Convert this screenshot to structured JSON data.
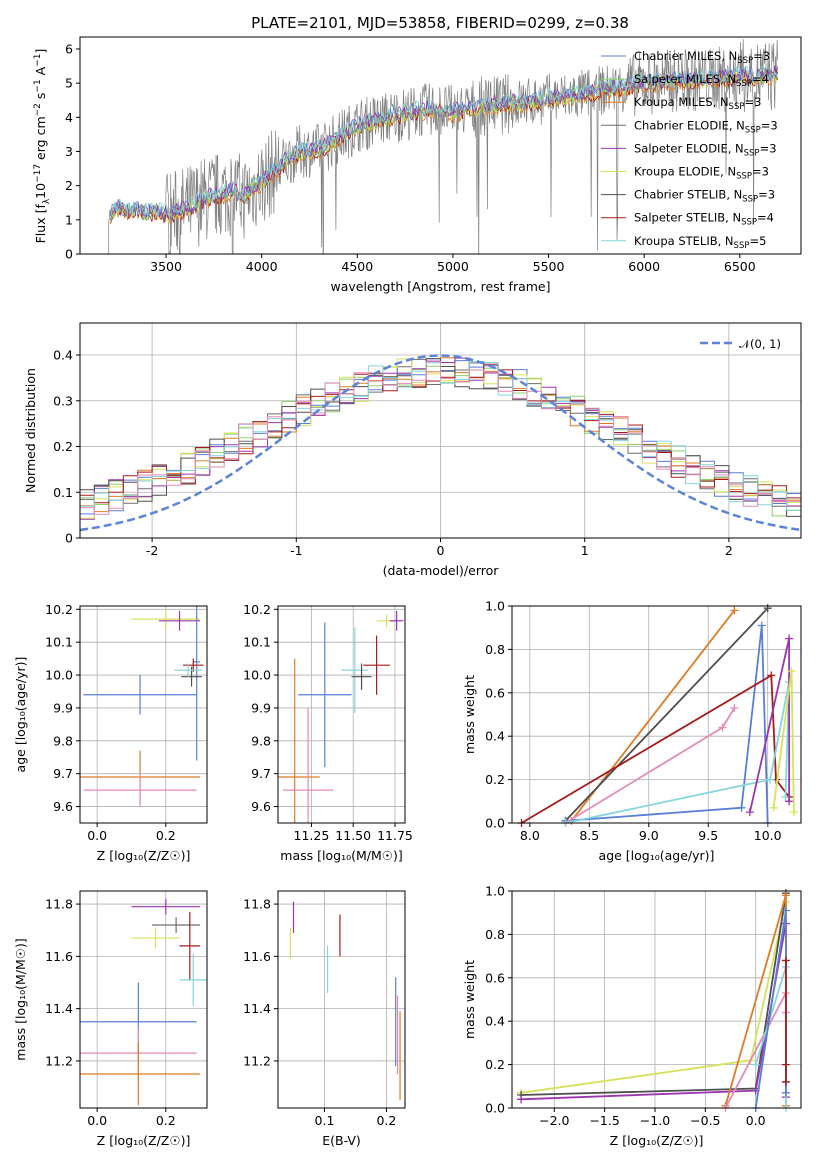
{
  "figure_title": "PLATE=2101, MJD=53858, FIBERID=0299, z=0.38",
  "colors": {
    "Chabrier MILES": "#5a7fd6",
    "Salpeter MILES": "#8fcf6c",
    "Kroupa MILES": "#e07b25",
    "Chabrier ELODIE": "#6f6f6f",
    "Salpeter ELODIE": "#9b36ad",
    "Kroupa ELODIE": "#d6e35a",
    "Chabrier STELIB": "#4f4f4f",
    "Salpeter STELIB": "#a51c1c",
    "Kroupa STELIB": "#84d6dc",
    "pink": "#e38ab8",
    "normal": "#5b84d8",
    "data": "#808080"
  },
  "chart_data": [
    {
      "id": "spectrum",
      "type": "line",
      "title": "PLATE=2101, MJD=53858, FIBERID=0299, z=0.38",
      "xlabel": "wavelength [Angstrom, rest frame]",
      "ylabel_parts": [
        "Flux [f",
        "λ",
        "10",
        "−17",
        " erg cm",
        "−2",
        " s",
        "−1",
        " A",
        "−1",
        "]"
      ],
      "xlim": [
        3050,
        6820
      ],
      "ylim": [
        0,
        6.35
      ],
      "xticks": [
        3500,
        4000,
        4500,
        5000,
        5500,
        6000,
        6500
      ],
      "yticks": [
        0,
        1,
        2,
        3,
        4,
        5,
        6
      ],
      "continuum_x": [
        3200,
        3250,
        3300,
        3350,
        3400,
        3450,
        3500,
        3550,
        3600,
        3650,
        3700,
        3750,
        3800,
        3850,
        3900,
        3950,
        4000,
        4100,
        4200,
        4300,
        4400,
        4500,
        4600,
        4700,
        4800,
        4900,
        5000,
        5100,
        5200,
        5300,
        5400,
        5500,
        5600,
        5700,
        5800,
        5900,
        6000,
        6100,
        6200,
        6300,
        6400,
        6500,
        6600,
        6700
      ],
      "continuum_y": [
        1.15,
        1.35,
        1.25,
        1.3,
        1.2,
        1.25,
        1.15,
        1.2,
        1.3,
        1.45,
        1.6,
        1.7,
        1.75,
        1.85,
        1.65,
        1.9,
        2.1,
        2.6,
        3.0,
        3.05,
        3.4,
        3.75,
        3.9,
        4.05,
        4.15,
        4.25,
        4.15,
        4.25,
        4.35,
        4.4,
        4.45,
        4.55,
        4.6,
        4.7,
        4.8,
        4.9,
        5.0,
        5.05,
        5.1,
        5.1,
        5.15,
        5.2,
        5.2,
        5.25
      ],
      "legend_position": "top-right",
      "legend": [
        {
          "name": "Chabrier MILES",
          "n": "3"
        },
        {
          "name": "Salpeter MILES",
          "n": "4"
        },
        {
          "name": "Kroupa MILES",
          "n": "3"
        },
        {
          "name": "Chabrier ELODIE",
          "n": "3"
        },
        {
          "name": "Salpeter ELODIE",
          "n": "3"
        },
        {
          "name": "Kroupa ELODIE",
          "n": "3"
        },
        {
          "name": "Chabrier STELIB",
          "n": "3"
        },
        {
          "name": "Salpeter STELIB",
          "n": "4"
        },
        {
          "name": "Kroupa STELIB",
          "n": "5"
        }
      ],
      "legend_n_label": "N",
      "legend_n_sub": "SSP"
    },
    {
      "id": "residuals",
      "type": "histogram",
      "xlabel": "(data-model)/error",
      "ylabel": "Normed distribution",
      "xlim": [
        -2.5,
        2.5
      ],
      "ylim": [
        0,
        0.47
      ],
      "xticks": [
        -2,
        -1,
        0,
        1,
        2
      ],
      "yticks": [
        0.0,
        0.1,
        0.2,
        0.3,
        0.4
      ],
      "grid": true,
      "bin_width": 0.1,
      "legend_position": "top-right",
      "normal_label": "𝒩(0, 1)"
    },
    {
      "id": "age_vs_Z",
      "type": "errorbar",
      "xlabel": "Z [log₁₀(Z/Z☉)]",
      "ylabel": "age  [log₁₀(age/yr)]",
      "xlim": [
        -0.05,
        0.32
      ],
      "ylim": [
        9.55,
        10.21
      ],
      "xticks": [
        0,
        0.2
      ],
      "xticklabels": [
        "0.0",
        "0.2"
      ],
      "yticks": [
        9.6,
        9.7,
        9.8,
        9.9,
        10.0,
        10.1,
        10.2
      ],
      "yticklabels": [
        "9.6",
        "9.7",
        "9.8",
        "9.9",
        "10.0",
        "10.1",
        "10.2"
      ],
      "grid": true,
      "points": [
        {
          "c": "Kroupa ELODIE",
          "x": 0.2,
          "y": 10.17,
          "xe": 0.1,
          "ye": 0.03
        },
        {
          "c": "Salpeter ELODIE",
          "x": 0.24,
          "y": 10.165,
          "xe": 0.06,
          "ye": 0.03
        },
        {
          "c": "Chabrier MILES",
          "x": 0.29,
          "y": 10.04,
          "xe": 0.01,
          "ye": 0.3
        },
        {
          "c": "Salpeter STELIB",
          "x": 0.28,
          "y": 10.03,
          "xe": 0.03,
          "ye": 0.02
        },
        {
          "c": "Chabrier STELIB",
          "x": 0.275,
          "y": 9.995,
          "xe": 0.03,
          "ye": 0.03
        },
        {
          "c": "Kroupa STELIB",
          "x": 0.265,
          "y": 10.015,
          "xe": 0.04,
          "ye": 0.02
        },
        {
          "c": "Chabrier MILES",
          "x": 0.125,
          "y": 9.94,
          "xe": 0.165,
          "ye": 0.06
        },
        {
          "c": "Kroupa MILES",
          "x": 0.125,
          "y": 9.69,
          "xe": 0.175,
          "ye": 0.08
        },
        {
          "c": "pink",
          "x": 0.125,
          "y": 9.65,
          "xe": 0.165,
          "ye": 0.05
        }
      ]
    },
    {
      "id": "age_vs_mass",
      "type": "errorbar",
      "xlabel": "mass [log₁₀(M/M☉)]",
      "ylabel": "",
      "xlim": [
        11.05,
        11.81
      ],
      "ylim": [
        9.55,
        10.21
      ],
      "xticks": [
        11.25,
        11.5,
        11.75
      ],
      "xticklabels": [
        "11.25",
        "11.50",
        "11.75"
      ],
      "yticks": [
        9.6,
        9.7,
        9.8,
        9.9,
        10.0,
        10.1,
        10.2
      ],
      "yticklabels": [
        "9.6",
        "9.7",
        "9.8",
        "9.9",
        "10.0",
        "10.1",
        "10.2"
      ],
      "grid": true,
      "points": [
        {
          "c": "Kroupa ELODIE",
          "x": 11.7,
          "y": 10.165,
          "xe": 0.06,
          "ye": 0.02
        },
        {
          "c": "Salpeter ELODIE",
          "x": 11.76,
          "y": 10.165,
          "xe": 0.04,
          "ye": 0.03
        },
        {
          "c": "Chabrier MILES",
          "x": 11.33,
          "y": 9.94,
          "xe": 0.16,
          "ye": 0.22
        },
        {
          "c": "Kroupa STELIB",
          "x": 11.51,
          "y": 10.015,
          "xe": 0.08,
          "ye": 0.13
        },
        {
          "c": "Salpeter STELIB",
          "x": 11.64,
          "y": 10.03,
          "xe": 0.08,
          "ye": 0.09
        },
        {
          "c": "Chabrier STELIB",
          "x": 11.55,
          "y": 9.995,
          "xe": 0.06,
          "ye": 0.04
        },
        {
          "c": "Kroupa MILES",
          "x": 11.15,
          "y": 9.69,
          "xe": 0.15,
          "ye": 0.36
        },
        {
          "c": "pink",
          "x": 11.23,
          "y": 9.65,
          "xe": 0.15,
          "ye": 0.25
        }
      ]
    },
    {
      "id": "mass_weight_vs_age",
      "type": "line",
      "xlabel": "age  [log₁₀(age/yr)]",
      "ylabel": "mass weight",
      "xlim": [
        7.85,
        10.28
      ],
      "ylim": [
        0,
        1
      ],
      "xticks": [
        8.0,
        8.5,
        9.0,
        9.5,
        10.0
      ],
      "xticklabels": [
        "8.0",
        "8.5",
        "9.0",
        "9.5",
        "10.0"
      ],
      "yticks": [
        0,
        0.2,
        0.4,
        0.6,
        0.8,
        1.0
      ],
      "yticklabels": [
        "0.0",
        "0.2",
        "0.4",
        "0.6",
        "0.8",
        "1.0"
      ],
      "grid": true,
      "series": [
        {
          "c": "Kroupa MILES",
          "x": [
            8.35,
            9.72
          ],
          "y": [
            0.01,
            0.98
          ]
        },
        {
          "c": "Chabrier STELIB",
          "x": [
            8.3,
            10.0
          ],
          "y": [
            0.01,
            0.99
          ]
        },
        {
          "c": "Chabrier MILES",
          "x": [
            8.3,
            9.78,
            9.95,
            10.0
          ],
          "y": [
            0.01,
            0.07,
            0.91,
            0.0
          ]
        },
        {
          "c": "Salpeter STELIB",
          "x": [
            7.93,
            10.03,
            10.07,
            10.18
          ],
          "y": [
            0.0,
            0.68,
            0.2,
            0.12
          ]
        },
        {
          "c": "pink",
          "x": [
            8.3,
            9.62,
            9.72
          ],
          "y": [
            0.0,
            0.44,
            0.53
          ]
        },
        {
          "c": "Kroupa STELIB",
          "x": [
            8.3,
            10.02,
            10.18,
            10.15
          ],
          "y": [
            0.0,
            0.2,
            0.65,
            0.12
          ]
        },
        {
          "c": "Salpeter ELODIE",
          "x": [
            9.85,
            10.18,
            10.18
          ],
          "y": [
            0.05,
            0.85,
            0.1
          ]
        },
        {
          "c": "Kroupa ELODIE",
          "x": [
            10.05,
            10.2,
            10.22
          ],
          "y": [
            0.07,
            0.7,
            0.05
          ]
        }
      ]
    },
    {
      "id": "mass_vs_Z",
      "type": "errorbar",
      "xlabel": "Z [log₁₀(Z/Z☉)]",
      "ylabel": "mass [log₁₀(M/M☉)]",
      "xlim": [
        -0.05,
        0.32
      ],
      "ylim": [
        11.02,
        11.85
      ],
      "xticks": [
        0,
        0.2
      ],
      "xticklabels": [
        "0.0",
        "0.2"
      ],
      "yticks": [
        11.2,
        11.4,
        11.6,
        11.8
      ],
      "yticklabels": [
        "11.2",
        "11.4",
        "11.6",
        "11.8"
      ],
      "grid": true,
      "points": [
        {
          "c": "Salpeter ELODIE",
          "x": 0.2,
          "y": 11.79,
          "xe": 0.1,
          "ye": 0.03
        },
        {
          "c": "Chabrier ELODIE",
          "x": 0.23,
          "y": 11.72,
          "xe": 0.07,
          "ye": 0.03
        },
        {
          "c": "Kroupa ELODIE",
          "x": 0.17,
          "y": 11.67,
          "xe": 0.07,
          "ye": 0.04
        },
        {
          "c": "Salpeter STELIB",
          "x": 0.27,
          "y": 11.64,
          "xe": 0.03,
          "ye": 0.13
        },
        {
          "c": "Kroupa STELIB",
          "x": 0.28,
          "y": 11.51,
          "xe": 0.04,
          "ye": 0.1
        },
        {
          "c": "Chabrier MILES",
          "x": 0.12,
          "y": 11.35,
          "xe": 0.17,
          "ye": 0.15
        },
        {
          "c": "pink",
          "x": 0.12,
          "y": 11.23,
          "xe": 0.17,
          "ye": 0.1
        },
        {
          "c": "Kroupa MILES",
          "x": 0.12,
          "y": 11.15,
          "xe": 0.18,
          "ye": 0.12
        }
      ]
    },
    {
      "id": "mass_vs_EBV",
      "type": "errorbar",
      "xlabel": "E(B-V)",
      "ylabel": "",
      "xlim": [
        0.025,
        0.23
      ],
      "ylim": [
        11.02,
        11.85
      ],
      "xticks": [
        0.1,
        0.2
      ],
      "xticklabels": [
        "0.1",
        "0.2"
      ],
      "yticks": [
        11.2,
        11.4,
        11.6,
        11.8
      ],
      "yticklabels": [
        "11.2",
        "11.4",
        "11.6",
        "11.8"
      ],
      "grid": true,
      "points": [
        {
          "c": "Salpeter ELODIE",
          "x": 0.05,
          "y": 11.75,
          "xe": 0,
          "ye": 0.06
        },
        {
          "c": "Kroupa ELODIE",
          "x": 0.045,
          "y": 11.65,
          "xe": 0,
          "ye": 0.06
        },
        {
          "c": "Salpeter STELIB",
          "x": 0.125,
          "y": 11.68,
          "xe": 0,
          "ye": 0.08
        },
        {
          "c": "Kroupa STELIB",
          "x": 0.105,
          "y": 11.55,
          "xe": 0,
          "ye": 0.09
        },
        {
          "c": "Chabrier MILES",
          "x": 0.215,
          "y": 11.35,
          "xe": 0,
          "ye": 0.17
        },
        {
          "c": "pink",
          "x": 0.218,
          "y": 11.3,
          "xe": 0,
          "ye": 0.15
        },
        {
          "c": "Kroupa MILES",
          "x": 0.222,
          "y": 11.22,
          "xe": 0,
          "ye": 0.17
        }
      ]
    },
    {
      "id": "mass_weight_vs_Z",
      "type": "line",
      "xlabel": "Z [log₁₀(Z/Z☉)]",
      "ylabel": "mass weight",
      "xlim": [
        -2.42,
        0.45
      ],
      "ylim": [
        0,
        1
      ],
      "xticks": [
        -2.0,
        -1.5,
        -1.0,
        -0.5,
        0.0
      ],
      "xticklabels": [
        "−2.0",
        "−1.5",
        "−1.0",
        "−0.5",
        "0.0"
      ],
      "yticks": [
        0,
        0.2,
        0.4,
        0.6,
        0.8,
        1.0
      ],
      "yticklabels": [
        "0.0",
        "0.2",
        "0.4",
        "0.6",
        "0.8",
        "1.0"
      ],
      "grid": true,
      "series": [
        {
          "c": "Kroupa ELODIE",
          "x": [
            -2.33,
            -0.05,
            0.3,
            0.3
          ],
          "y": [
            0.07,
            0.22,
            0.95,
            0.05
          ]
        },
        {
          "c": "Chabrier STELIB",
          "x": [
            -2.33,
            0.0,
            0.3
          ],
          "y": [
            0.06,
            0.09,
            0.99
          ]
        },
        {
          "c": "Salpeter ELODIE",
          "x": [
            -2.33,
            0.0,
            0.3,
            0.3
          ],
          "y": [
            0.04,
            0.08,
            0.85,
            0.05
          ]
        },
        {
          "c": "Kroupa MILES",
          "x": [
            -0.3,
            0.3,
            0.3
          ],
          "y": [
            0.01,
            0.98,
            0.01
          ]
        },
        {
          "c": "pink",
          "x": [
            -0.3,
            0.3,
            0.3
          ],
          "y": [
            0.0,
            0.53,
            0.44
          ]
        },
        {
          "c": "Kroupa STELIB",
          "x": [
            0.0,
            0.3,
            0.3,
            0.3
          ],
          "y": [
            0.2,
            0.65,
            0.12,
            0.0
          ]
        },
        {
          "c": "Chabrier MILES",
          "x": [
            0.0,
            0.3,
            0.3
          ],
          "y": [
            0.0,
            0.91,
            0.07
          ]
        },
        {
          "c": "Salpeter STELIB",
          "x": [
            0.3,
            0.3,
            0.3
          ],
          "y": [
            0.68,
            0.2,
            0.12
          ]
        }
      ]
    }
  ]
}
